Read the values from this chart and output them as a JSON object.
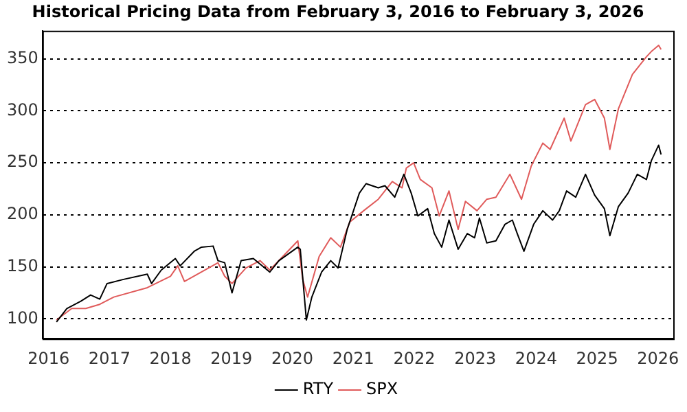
{
  "chart_data": {
    "type": "line",
    "title": "Historical Pricing Data from February 3, 2016 to February 3, 2026",
    "xlim": [
      2015.9,
      2026.25
    ],
    "xticks": [
      2016,
      2017,
      2018,
      2019,
      2020,
      2021,
      2022,
      2023,
      2024,
      2025,
      2026
    ],
    "ylim": [
      81,
      377
    ],
    "yticks": [
      100,
      150,
      200,
      250,
      300,
      350
    ],
    "grid": "y",
    "legend": "bottom",
    "marker": "none",
    "line_style": "solid",
    "series": [
      {
        "name": "RTY",
        "color": "#000000",
        "x": [
          2016.13,
          2016.3,
          2016.53,
          2016.69,
          2016.84,
          2016.96,
          2017.23,
          2017.62,
          2017.69,
          2017.85,
          2018.08,
          2018.16,
          2018.39,
          2018.51,
          2018.7,
          2018.78,
          2018.89,
          2019.01,
          2019.16,
          2019.36,
          2019.63,
          2019.78,
          2020.09,
          2020.13,
          2020.23,
          2020.32,
          2020.48,
          2020.63,
          2020.75,
          2020.9,
          2021.1,
          2021.21,
          2021.41,
          2021.52,
          2021.68,
          2021.83,
          2021.95,
          2022.06,
          2022.22,
          2022.33,
          2022.45,
          2022.57,
          2022.72,
          2022.87,
          2022.99,
          2023.07,
          2023.19,
          2023.34,
          2023.49,
          2023.61,
          2023.69,
          2023.8,
          2023.96,
          2024.11,
          2024.27,
          2024.38,
          2024.5,
          2024.65,
          2024.81,
          2024.96,
          2025.12,
          2025.21,
          2025.35,
          2025.51,
          2025.66,
          2025.81,
          2025.89,
          2026.01,
          2026.05
        ],
        "values": [
          97,
          110,
          117,
          123,
          119,
          134,
          138,
          143,
          134,
          147,
          158,
          151,
          165,
          169,
          170,
          156,
          154,
          125,
          156,
          158,
          145,
          156,
          169,
          167,
          99,
          121,
          145,
          156,
          149,
          186,
          221,
          230,
          226,
          228,
          217,
          239,
          221,
          199,
          206,
          182,
          169,
          195,
          167,
          182,
          178,
          197,
          173,
          175,
          191,
          195,
          182,
          165,
          191,
          204,
          195,
          204,
          223,
          217,
          239,
          219,
          206,
          180,
          208,
          221,
          239,
          234,
          252,
          267,
          258
        ]
      },
      {
        "name": "SPX",
        "color": "#e05a5a",
        "x": [
          2016.13,
          2016.38,
          2016.61,
          2016.84,
          2017.07,
          2017.62,
          2018.0,
          2018.12,
          2018.23,
          2018.78,
          2018.89,
          2019.01,
          2019.24,
          2019.47,
          2019.63,
          2020.09,
          2020.17,
          2020.25,
          2020.44,
          2020.63,
          2020.79,
          2020.94,
          2021.17,
          2021.41,
          2021.64,
          2021.8,
          2021.87,
          2021.99,
          2022.1,
          2022.29,
          2022.41,
          2022.57,
          2022.72,
          2022.84,
          2023.03,
          2023.19,
          2023.34,
          2023.57,
          2023.76,
          2023.92,
          2024.11,
          2024.23,
          2024.46,
          2024.57,
          2024.81,
          2024.96,
          2025.12,
          2025.21,
          2025.35,
          2025.58,
          2025.81,
          2025.89,
          2026.01,
          2026.05
        ],
        "values": [
          99,
          110,
          110,
          114,
          121,
          130,
          141,
          151,
          136,
          154,
          141,
          134,
          149,
          156,
          147,
          175,
          138,
          121,
          160,
          178,
          169,
          193,
          204,
          215,
          232,
          226,
          245,
          250,
          234,
          226,
          199,
          223,
          186,
          213,
          204,
          215,
          217,
          239,
          215,
          247,
          269,
          263,
          293,
          271,
          306,
          311,
          293,
          263,
          302,
          335,
          352,
          357,
          363,
          359
        ]
      }
    ]
  }
}
